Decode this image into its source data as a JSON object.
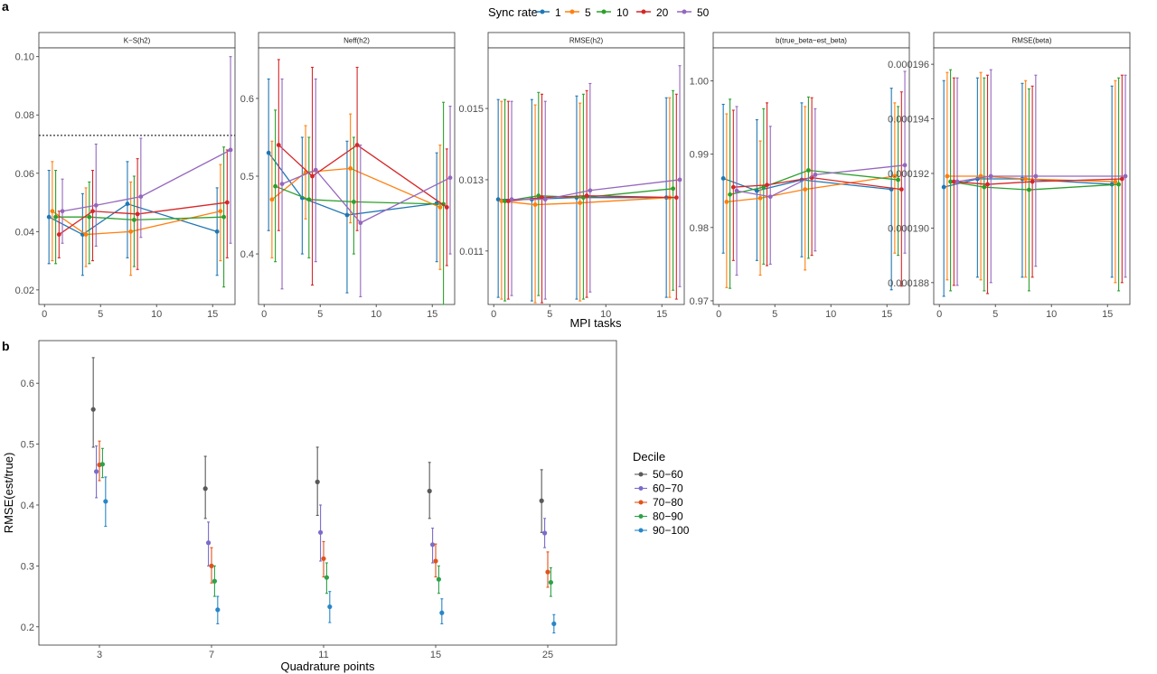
{
  "figure": {
    "panel_a_label": "a",
    "panel_b_label": "b"
  },
  "chart_data": [
    {
      "type": "line",
      "panel": "a",
      "xlabel": "MPI tasks",
      "x": [
        1,
        4,
        8,
        16
      ],
      "x_ticks": [
        0,
        5,
        10,
        15
      ],
      "xlim": [
        -0.5,
        17
      ],
      "legend": {
        "title": "Sync rate",
        "position": "top",
        "entries": [
          "1",
          "5",
          "10",
          "20",
          "50"
        ]
      },
      "series_colors": {
        "1": "#1f77b4",
        "5": "#ff7f0e",
        "10": "#2ca02c",
        "20": "#d62728",
        "50": "#9467bd"
      },
      "dodge": {
        "1": -0.6,
        "5": -0.3,
        "10": 0.0,
        "20": 0.3,
        "50": 0.6
      },
      "grid": false,
      "facets": [
        {
          "title": "K−S(h2)",
          "ylim": [
            0.015,
            0.103
          ],
          "y_ticks": [
            0.02,
            0.04,
            0.06,
            0.08,
            0.1
          ],
          "y_tick_labels": [
            "0.02",
            "0.04",
            "0.06",
            "0.08",
            "0.10"
          ],
          "hline": 0.073,
          "series": [
            {
              "name": "1",
              "values": [
                0.045,
                0.039,
                0.0495,
                0.04
              ],
              "lower": [
                0.029,
                0.025,
                0.031,
                0.025
              ],
              "upper": [
                0.061,
                0.053,
                0.064,
                0.055
              ]
            },
            {
              "name": "5",
              "values": [
                0.047,
                0.039,
                0.04,
                0.047
              ],
              "lower": [
                0.03,
                0.028,
                0.025,
                0.03
              ],
              "upper": [
                0.064,
                0.055,
                0.057,
                0.063
              ]
            },
            {
              "name": "10",
              "values": [
                0.045,
                0.045,
                0.044,
                0.045
              ],
              "lower": [
                0.029,
                0.029,
                0.028,
                0.021
              ],
              "upper": [
                0.061,
                0.057,
                0.059,
                0.069
              ]
            },
            {
              "name": "20",
              "values": [
                0.039,
                0.047,
                0.046,
                0.05
              ],
              "lower": [
                0.031,
                0.03,
                0.027,
                0.031
              ],
              "upper": [
                0.047,
                0.061,
                0.065,
                0.068
              ]
            },
            {
              "name": "50",
              "values": [
                0.047,
                0.049,
                0.052,
                0.068
              ],
              "lower": [
                0.036,
                0.035,
                0.038,
                0.036
              ],
              "upper": [
                0.058,
                0.07,
                0.072,
                0.1
              ]
            }
          ]
        },
        {
          "title": "Neff(h2)",
          "ylim": [
            0.335,
            0.665
          ],
          "y_ticks": [
            0.4,
            0.5,
            0.6
          ],
          "y_tick_labels": [
            "0.4",
            "0.5",
            "0.6"
          ],
          "hline": null,
          "series": [
            {
              "name": "1",
              "values": [
                0.53,
                0.472,
                0.45,
                0.465
              ],
              "lower": [
                0.43,
                0.4,
                0.35,
                0.39
              ],
              "upper": [
                0.625,
                0.55,
                0.545,
                0.53
              ]
            },
            {
              "name": "5",
              "values": [
                0.47,
                0.505,
                0.51,
                0.46
              ],
              "lower": [
                0.395,
                0.445,
                0.44,
                0.38
              ],
              "upper": [
                0.545,
                0.565,
                0.58,
                0.54
              ]
            },
            {
              "name": "10",
              "values": [
                0.487,
                0.47,
                0.467,
                0.464
              ],
              "lower": [
                0.39,
                0.395,
                0.4,
                0.335
              ],
              "upper": [
                0.585,
                0.55,
                0.55,
                0.595
              ]
            },
            {
              "name": "20",
              "values": [
                0.54,
                0.5,
                0.54,
                0.46
              ],
              "lower": [
                0.43,
                0.36,
                0.43,
                0.385
              ],
              "upper": [
                0.65,
                0.64,
                0.64,
                0.535
              ]
            },
            {
              "name": "50",
              "values": [
                0.49,
                0.508,
                0.44,
                0.498
              ],
              "lower": [
                0.355,
                0.39,
                0.345,
                0.4
              ],
              "upper": [
                0.625,
                0.625,
                0.54,
                0.59
              ]
            }
          ]
        },
        {
          "title": "RMSE(h2)",
          "ylim": [
            0.0095,
            0.0167
          ],
          "y_ticks": [
            0.011,
            0.013,
            0.015
          ],
          "y_tick_labels": [
            "0.011",
            "0.013",
            "0.015"
          ],
          "hline": null,
          "series": [
            {
              "name": "1",
              "values": [
                0.01245,
                0.01245,
                0.0125,
                0.0125
              ],
              "lower": [
                0.0097,
                0.0096,
                0.00965,
                0.0097
              ],
              "upper": [
                0.01525,
                0.01525,
                0.01535,
                0.0153
              ]
            },
            {
              "name": "5",
              "values": [
                0.0124,
                0.0123,
                0.01235,
                0.0125
              ],
              "lower": [
                0.00965,
                0.00955,
                0.0096,
                0.0097
              ],
              "upper": [
                0.0152,
                0.0151,
                0.01515,
                0.0153
              ]
            },
            {
              "name": "10",
              "values": [
                0.0124,
                0.01255,
                0.0125,
                0.01275
              ],
              "lower": [
                0.0096,
                0.00975,
                0.00965,
                0.0099
              ],
              "upper": [
                0.01525,
                0.01545,
                0.0154,
                0.0155
              ]
            },
            {
              "name": "20",
              "values": [
                0.0124,
                0.0125,
                0.01255,
                0.0125
              ],
              "lower": [
                0.00965,
                0.00955,
                0.0097,
                0.00965
              ],
              "upper": [
                0.0152,
                0.0154,
                0.0155,
                0.0154
              ]
            },
            {
              "name": "50",
              "values": [
                0.01245,
                0.01245,
                0.0127,
                0.013
              ],
              "lower": [
                0.00975,
                0.00965,
                0.00985,
                0.01
              ],
              "upper": [
                0.0152,
                0.0152,
                0.0157,
                0.0162
              ]
            }
          ]
        },
        {
          "title": "b(true_beta~est_beta)",
          "ylim": [
            0.9695,
            1.0045
          ],
          "y_ticks": [
            0.97,
            0.98,
            0.99,
            1.0
          ],
          "y_tick_labels": [
            "0.97",
            "0.98",
            "0.99",
            "1.00"
          ],
          "hline": null,
          "series": [
            {
              "name": "1",
              "values": [
                0.9867,
                0.985,
                0.9865,
                0.9852
              ],
              "lower": [
                0.9765,
                0.9755,
                0.976,
                0.9715
              ],
              "upper": [
                0.9968,
                0.9947,
                0.997,
                0.999
              ]
            },
            {
              "name": "5",
              "values": [
                0.9835,
                0.984,
                0.9852,
                0.987
              ],
              "lower": [
                0.9718,
                0.9735,
                0.9742,
                0.9765
              ],
              "upper": [
                0.9955,
                0.9918,
                0.9965,
                0.997
              ]
            },
            {
              "name": "10",
              "values": [
                0.9845,
                0.9855,
                0.9878,
                0.9865
              ],
              "lower": [
                0.9717,
                0.975,
                0.9758,
                0.9762
              ],
              "upper": [
                0.9975,
                0.9962,
                0.9978,
                0.9965
              ]
            },
            {
              "name": "20",
              "values": [
                0.9855,
                0.9858,
                0.9868,
                0.9852
              ],
              "lower": [
                0.9755,
                0.9748,
                0.9762,
                0.972
              ],
              "upper": [
                0.996,
                0.997,
                0.9977,
                0.9985
              ]
            },
            {
              "name": "50",
              "values": [
                0.985,
                0.9842,
                0.9872,
                0.9885
              ],
              "lower": [
                0.9735,
                0.975,
                0.9768,
                0.9765
              ],
              "upper": [
                0.9965,
                0.9938,
                0.9962,
                1.0013
              ]
            }
          ]
        },
        {
          "title": "RMSE(beta)",
          "ylim": [
            0.0001872,
            0.0001966
          ],
          "y_ticks": [
            0.000188,
            0.00019,
            0.000192,
            0.000194,
            0.000196
          ],
          "y_tick_labels": [
            "0.000188",
            "0.000190",
            "0.000192",
            "0.000194",
            "0.000196"
          ],
          "hline": null,
          "series": [
            {
              "name": "1",
              "values": [
                0.0001915,
                0.0001918,
                0.0001918,
                0.0001916
              ],
              "lower": [
                0.0001875,
                0.0001882,
                0.0001882,
                0.0001882
              ],
              "upper": [
                0.0001954,
                0.0001955,
                0.0001953,
                0.0001952
              ]
            },
            {
              "name": "5",
              "values": [
                0.0001919,
                0.0001919,
                0.0001918,
                0.0001917
              ],
              "lower": [
                0.0001881,
                0.0001881,
                0.0001882,
                0.000188
              ],
              "upper": [
                0.0001957,
                0.0001957,
                0.0001954,
                0.0001954
              ]
            },
            {
              "name": "10",
              "values": [
                0.0001917,
                0.0001915,
                0.0001914,
                0.0001916
              ],
              "lower": [
                0.0001877,
                0.0001877,
                0.0001877,
                0.0001877
              ],
              "upper": [
                0.0001958,
                0.0001955,
                0.0001951,
                0.0001955
              ]
            },
            {
              "name": "20",
              "values": [
                0.0001917,
                0.0001916,
                0.0001917,
                0.0001918
              ],
              "lower": [
                0.0001879,
                0.0001876,
                0.0001882,
                0.000188
              ],
              "upper": [
                0.0001955,
                0.0001956,
                0.0001952,
                0.0001956
              ]
            },
            {
              "name": "50",
              "values": [
                0.0001917,
                0.0001919,
                0.0001919,
                0.0001919
              ],
              "lower": [
                0.0001879,
                0.000188,
                0.0001886,
                0.0001882
              ],
              "upper": [
                0.0001955,
                0.0001958,
                0.0001956,
                0.0001956
              ]
            }
          ]
        }
      ]
    },
    {
      "type": "scatter",
      "panel": "b",
      "xlabel": "Quadrature points",
      "ylabel": "RMSE(est/true)",
      "categories": [
        "3",
        "7",
        "11",
        "15",
        "25"
      ],
      "ylim": [
        0.17,
        0.67
      ],
      "y_ticks": [
        0.2,
        0.3,
        0.4,
        0.5,
        0.6
      ],
      "y_tick_labels": [
        "0.2",
        "0.3",
        "0.4",
        "0.5",
        "0.6"
      ],
      "grid": false,
      "legend": {
        "title": "Decile",
        "position": "right"
      },
      "dodge": [
        -0.22,
        -0.11,
        0.0,
        0.11,
        0.22
      ],
      "series": [
        {
          "name": "50−60",
          "color": "#595959",
          "values": [
            0.557,
            0.427,
            0.438,
            0.423,
            0.407
          ],
          "lower": [
            0.495,
            0.378,
            0.383,
            0.378,
            0.355
          ],
          "upper": [
            0.642,
            0.48,
            0.495,
            0.47,
            0.458
          ]
        },
        {
          "name": "60−70",
          "color": "#7b6cc9",
          "values": [
            0.455,
            0.338,
            0.355,
            0.335,
            0.354
          ],
          "lower": [
            0.412,
            0.3,
            0.308,
            0.305,
            0.33
          ],
          "upper": [
            0.497,
            0.372,
            0.4,
            0.362,
            0.378
          ]
        },
        {
          "name": "70−80",
          "color": "#e0531a",
          "values": [
            0.466,
            0.3,
            0.312,
            0.308,
            0.29
          ],
          "lower": [
            0.44,
            0.272,
            0.282,
            0.282,
            0.265
          ],
          "upper": [
            0.505,
            0.33,
            0.34,
            0.336,
            0.323
          ]
        },
        {
          "name": "80−90",
          "color": "#2ca24a",
          "values": [
            0.467,
            0.275,
            0.281,
            0.278,
            0.273
          ],
          "lower": [
            0.445,
            0.25,
            0.255,
            0.255,
            0.25
          ],
          "upper": [
            0.493,
            0.3,
            0.305,
            0.3,
            0.297
          ]
        },
        {
          "name": "90−100",
          "color": "#2886c8",
          "values": [
            0.406,
            0.228,
            0.233,
            0.223,
            0.205
          ],
          "lower": [
            0.365,
            0.205,
            0.207,
            0.205,
            0.19
          ],
          "upper": [
            0.446,
            0.25,
            0.258,
            0.246,
            0.22
          ]
        }
      ]
    }
  ]
}
